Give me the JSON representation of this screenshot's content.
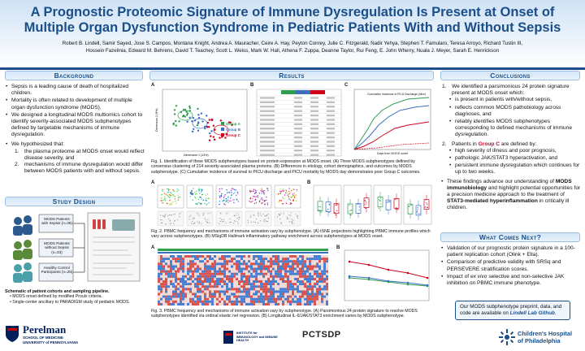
{
  "header": {
    "title_line1": "A Prognostic Proteomic Signature of Immune Dysregulation Is Present at Onset of",
    "title_line2": "Multiple Organ Dysfunction Syndrome in Pediatric Patients With and Without Sepsis",
    "authors_line1": "Robert B. Lindell, Samir Sayed, Jose S. Campos, Montana Knight, Andrea A. Mauracher, Ceire A. Hay, Peyton Conrey, Julie C. Fitzgerald, Nadir Yehya, Stephen T. Famularo, Teresa Arroyo, Richard Tustin III,",
    "authors_line2": "Hossein Fazelinia, Edward M. Behrens, David T. Teachey, Scott L. Weiss, Mark W. Hall, Athena F. Zuppa, Deanne Taylor, Rui Feng, E. John Wherry, Nuala J. Meyer, Sarah E. Henrickson"
  },
  "background": {
    "heading": "Background",
    "bullets": [
      "Sepsis is a leading cause of death of hospitalized children.",
      "Mortality is often related to development of multiple organ dysfunction syndrome (MODS).",
      "We designed a longitudinal MODS multiomics cohort to identify severity-associated MODS subphenotypes defined by targetable mechanisms of immune dysregulation.",
      "We hypothesized that:"
    ],
    "hyp1": "the plasma proteome at MODS onset would reflect disease severity, and",
    "hyp2": "mechanisms of immune dysregulation would differ between MODS patients with and without sepsis."
  },
  "study_design": {
    "heading": "Study Design",
    "boxes": [
      "MODS Patients with Sepsis (n=39)",
      "MODS Patients without Sepsis (n=33)",
      "Healthy Control Participants (n=25)"
    ],
    "caption_title": "Schematic of patient cohorts and sampling pipeline.",
    "caption_b1": "MODS onset defined by modified Proulx criteria.",
    "caption_b2": "Single-center ancillary to PARADIGM study of pediatric MODS."
  },
  "results": {
    "heading": "Results",
    "fig1_caption": "Fig. 1. Identification of three MODS subphenotypes based on protein expression at MODS onset. (A) Three MODS subphenotypes defined by consensus clustering of 214 severity-associated plasma proteins. (B) Differences in etiology, cohort demographics, and outcomes by MODS subphenotype. (C) Cumulative incidence of survival to PICU discharge and PICU mortality by MODS day demonstrates poor Group C outcomes.",
    "fig2_caption": "Fig. 2. PBMC frequency and mechanisms of immune activation vary by subphenotype. (A) tSNE projections highlighting PBMC immune profiles which vary across subphenotypes. (B) MSigDB Hallmark inflammatory pathway enrichment across subphenotypes at MODS onset.",
    "fig3_caption": "Fig. 3. PBMC frequency and mechanisms of immune activation vary by subphenotype. (A) Parsimonious 24 protein signature to resolve MODS subphenotypes identified via ordinal elastic net regression. (B) Longitudinal IL-6/JAK/STAT3 enrichment varies by MODS subphenotype.",
    "legend_groups": [
      "Group A",
      "Group B",
      "Group C"
    ],
    "axis_x": "Dimension 1 (13%)",
    "axis_y": "Dimension 2 (9%)",
    "c_x": "Days from MODS onset",
    "c_label": "Cumulative Incidence of PICU Discharge (Alive)",
    "panel_labels": [
      "A",
      "B",
      "C"
    ]
  },
  "conclusions": {
    "heading": "Conclusions",
    "p1_lead": "We identified a parsimonious 24 protein signature present at MODS onset which:",
    "p1_subs": [
      "is present in patients with/without sepsis,",
      "reflects common MODS pathobiology across diagnoses, and",
      "reliably identifies MODS subphenotypes corresponding to defined mechanisms of immune dysregulation."
    ],
    "p2_pre": "Patients in ",
    "p2_group": "Group C",
    "p2_post": " are defined by:",
    "p2_subs": [
      "high severity of illness and poor prognosis,",
      "pathologic JAK/STAT3 hyperactivation, and",
      "persistent immune dysregulation which continues for up to two weeks."
    ],
    "p3_a": "These findings advance our understanding of ",
    "p3_b": "MODS immunobiology",
    "p3_c": " and highlight potential opportunities for a precision medicine approach to the treatment of ",
    "p3_d": "STAT3-mediated hyperinflammation",
    "p3_e": " in critically ill children."
  },
  "next": {
    "heading": "What Comes Next?",
    "bullets": [
      "Validation of our prognostic protein signature in a 100-patient replication cohort (Olink + Ella).",
      "Comparison of predictive validity with SRSq and PERSEVERE stratification scores."
    ],
    "b3_pre": "Impact of ",
    "b3_em": "ex vivo",
    "b3_post": " selective and non-selective JAK inhibition on PBMC immune phenotype.",
    "preprint_a": "Our MODS subphenotype preprint, data, and code are available on ",
    "preprint_link": "Lindell Lab Github",
    "preprint_end": "."
  },
  "logos": {
    "penn_main": "Perelman",
    "penn_sub": "SCHOOL OF MEDICINE",
    "penn_sub2": "UNIVERSITY of PENNSYLVANIA",
    "pctsdp": "PCTSDP",
    "chop_line1": "Children's Hospital",
    "chop_line2": "of Philadelphia",
    "institute": "INSTITUTE for IMMUNOLOGY and IMMUNE HEALTH"
  },
  "colors": {
    "primary": "#1a4f8a",
    "group_a": "#2e9e4f",
    "group_b": "#3b6fc4",
    "group_c": "#d0021b"
  }
}
